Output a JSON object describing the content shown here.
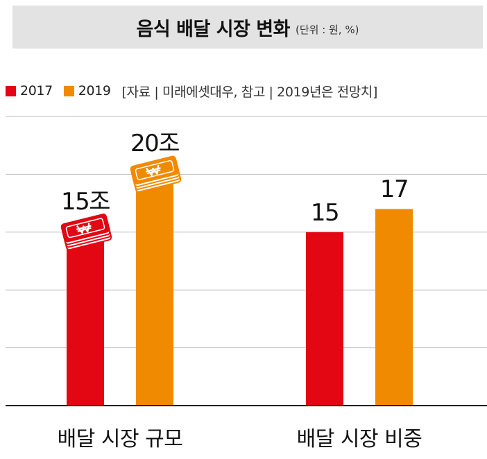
{
  "title": {
    "main": "음식 배달 시장 변화",
    "unit": "(단위 : 원, %)"
  },
  "legend": {
    "items": [
      {
        "label": "2017",
        "color": "#e30613"
      },
      {
        "label": "2019",
        "color": "#f08a00"
      }
    ],
    "source": "[자료 | 미래에셋대우, 참고 | 2019년은 전망치]"
  },
  "icons": {
    "money_stack": "won-banknote-stack-icon"
  },
  "chart_data": {
    "type": "bar",
    "categories": [
      "배달 시장 규모",
      "배달 시장 비중"
    ],
    "series": [
      {
        "name": "2017",
        "color": "#e30613",
        "values": [
          15,
          15
        ],
        "labels": [
          "15조",
          "15"
        ]
      },
      {
        "name": "2019",
        "color": "#f08a00",
        "values": [
          20,
          17
        ],
        "labels": [
          "20조",
          "17"
        ]
      }
    ],
    "ylim": [
      0,
      25
    ],
    "grid": true,
    "legend_position": "top-left",
    "note": "첫 번째 범주의 막대 끝에는 원화 지폐 더미 그림"
  }
}
